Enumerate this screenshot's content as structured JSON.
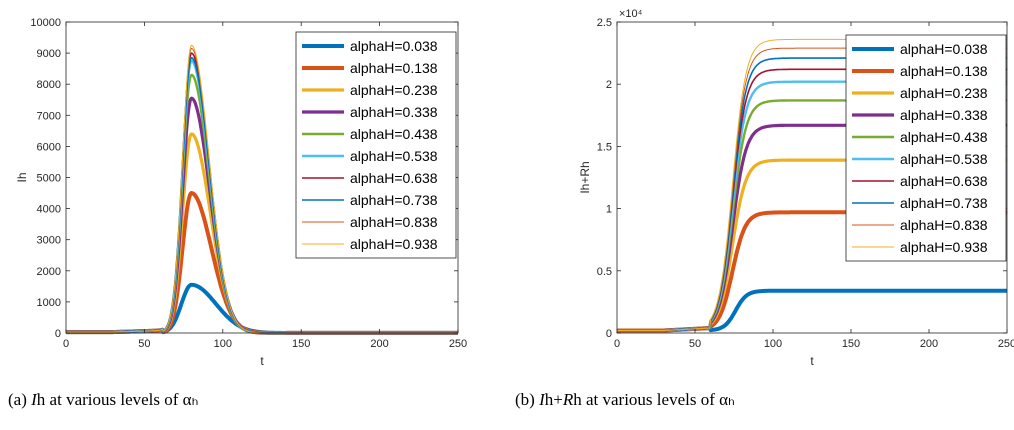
{
  "colors": {
    "axis": "#262626",
    "series": [
      "#0072BD",
      "#D95319",
      "#EDB120",
      "#7E2F8E",
      "#77AC30",
      "#4DBEEE",
      "#A2142F",
      "#0072BD",
      "#D95319",
      "#EDB120"
    ]
  },
  "chart_data": [
    {
      "type": "line",
      "xlabel": "t",
      "ylabel": "Ih",
      "xlim": [
        0,
        250
      ],
      "ylim": [
        0,
        10000
      ],
      "xticks": [
        0,
        50,
        100,
        150,
        200,
        250
      ],
      "yticks": [
        0,
        1000,
        2000,
        3000,
        4000,
        5000,
        6000,
        7000,
        8000,
        9000,
        10000
      ],
      "ytick_labels": [
        "0",
        "1000",
        "2000",
        "3000",
        "4000",
        "5000",
        "6000",
        "7000",
        "8000",
        "9000",
        "10000"
      ],
      "grid": false,
      "legend_position": "top-right",
      "series": [
        {
          "name": "alphaH=0.038",
          "peak_t": 80,
          "peak": 1550,
          "width": [
            9,
            22
          ]
        },
        {
          "name": "alphaH=0.138",
          "peak_t": 80,
          "peak": 4500,
          "width": [
            8,
            18
          ]
        },
        {
          "name": "alphaH=0.238",
          "peak_t": 80,
          "peak": 6400,
          "width": [
            8,
            17
          ]
        },
        {
          "name": "alphaH=0.338",
          "peak_t": 80,
          "peak": 7550,
          "width": [
            8,
            16.5
          ]
        },
        {
          "name": "alphaH=0.438",
          "peak_t": 80,
          "peak": 8300,
          "width": [
            8,
            16
          ]
        },
        {
          "name": "alphaH=0.538",
          "peak_t": 80,
          "peak": 8750,
          "width": [
            8,
            16
          ]
        },
        {
          "name": "alphaH=0.638",
          "peak_t": 80,
          "peak": 9000,
          "width": [
            8,
            16
          ]
        },
        {
          "name": "alphaH=0.738",
          "peak_t": 80,
          "peak": 8850,
          "width": [
            8,
            16
          ]
        },
        {
          "name": "alphaH=0.838",
          "peak_t": 80,
          "peak": 9150,
          "width": [
            8,
            16
          ]
        },
        {
          "name": "alphaH=0.938",
          "peak_t": 80,
          "peak": 9250,
          "width": [
            8,
            16
          ]
        }
      ]
    },
    {
      "type": "line",
      "xlabel": "t",
      "ylabel": "Ih+Rh",
      "exponent_label": "×10⁴",
      "xlim": [
        0,
        250
      ],
      "ylim": [
        0,
        2.5
      ],
      "xticks": [
        0,
        50,
        100,
        150,
        200,
        250
      ],
      "yticks": [
        0,
        0.5,
        1,
        1.5,
        2,
        2.5
      ],
      "ytick_labels": [
        "0",
        "0.5",
        "1",
        "1.5",
        "2",
        "2.5"
      ],
      "grid": false,
      "legend_position": "top-right",
      "series": [
        {
          "name": "alphaH=0.038",
          "plateau": 0.32,
          "mid_t": 76,
          "k": 0.28
        },
        {
          "name": "alphaH=0.138",
          "plateau": 0.95,
          "mid_t": 74,
          "k": 0.24
        },
        {
          "name": "alphaH=0.238",
          "plateau": 1.37,
          "mid_t": 74,
          "k": 0.23
        },
        {
          "name": "alphaH=0.338",
          "plateau": 1.65,
          "mid_t": 74,
          "k": 0.23
        },
        {
          "name": "alphaH=0.438",
          "plateau": 1.85,
          "mid_t": 74,
          "k": 0.23
        },
        {
          "name": "alphaH=0.538",
          "plateau": 2.0,
          "mid_t": 74,
          "k": 0.23
        },
        {
          "name": "alphaH=0.638",
          "plateau": 2.1,
          "mid_t": 74,
          "k": 0.23
        },
        {
          "name": "alphaH=0.738",
          "plateau": 2.19,
          "mid_t": 74,
          "k": 0.23
        },
        {
          "name": "alphaH=0.838",
          "plateau": 2.27,
          "mid_t": 74,
          "k": 0.23
        },
        {
          "name": "alphaH=0.938",
          "plateau": 2.34,
          "mid_t": 74,
          "k": 0.23
        }
      ]
    }
  ],
  "captions": {
    "a_prefix": "(a) ",
    "a_var": "I",
    "a_rest": "h at various levels of αₕ",
    "b_prefix": "(b) ",
    "b_var1": "I",
    "b_mid": "h+",
    "b_var2": "R",
    "b_rest": "h at various levels of αₕ"
  }
}
